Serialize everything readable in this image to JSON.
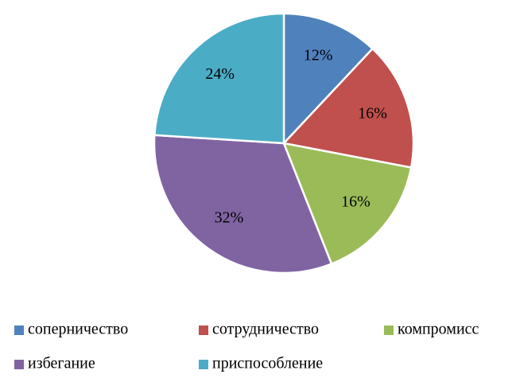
{
  "chart_data": {
    "type": "pie",
    "categories": [
      "соперничество",
      "сотрудничество",
      "компромисс",
      "избегание",
      "приспособление"
    ],
    "values": [
      12,
      16,
      16,
      32,
      24
    ],
    "value_labels": [
      "12%",
      "16%",
      "16%",
      "32%",
      "24%"
    ],
    "colors": [
      "#4f81bd",
      "#c0504d",
      "#9bbb59",
      "#8064a2",
      "#4bacc6"
    ],
    "legend": "bottom"
  }
}
